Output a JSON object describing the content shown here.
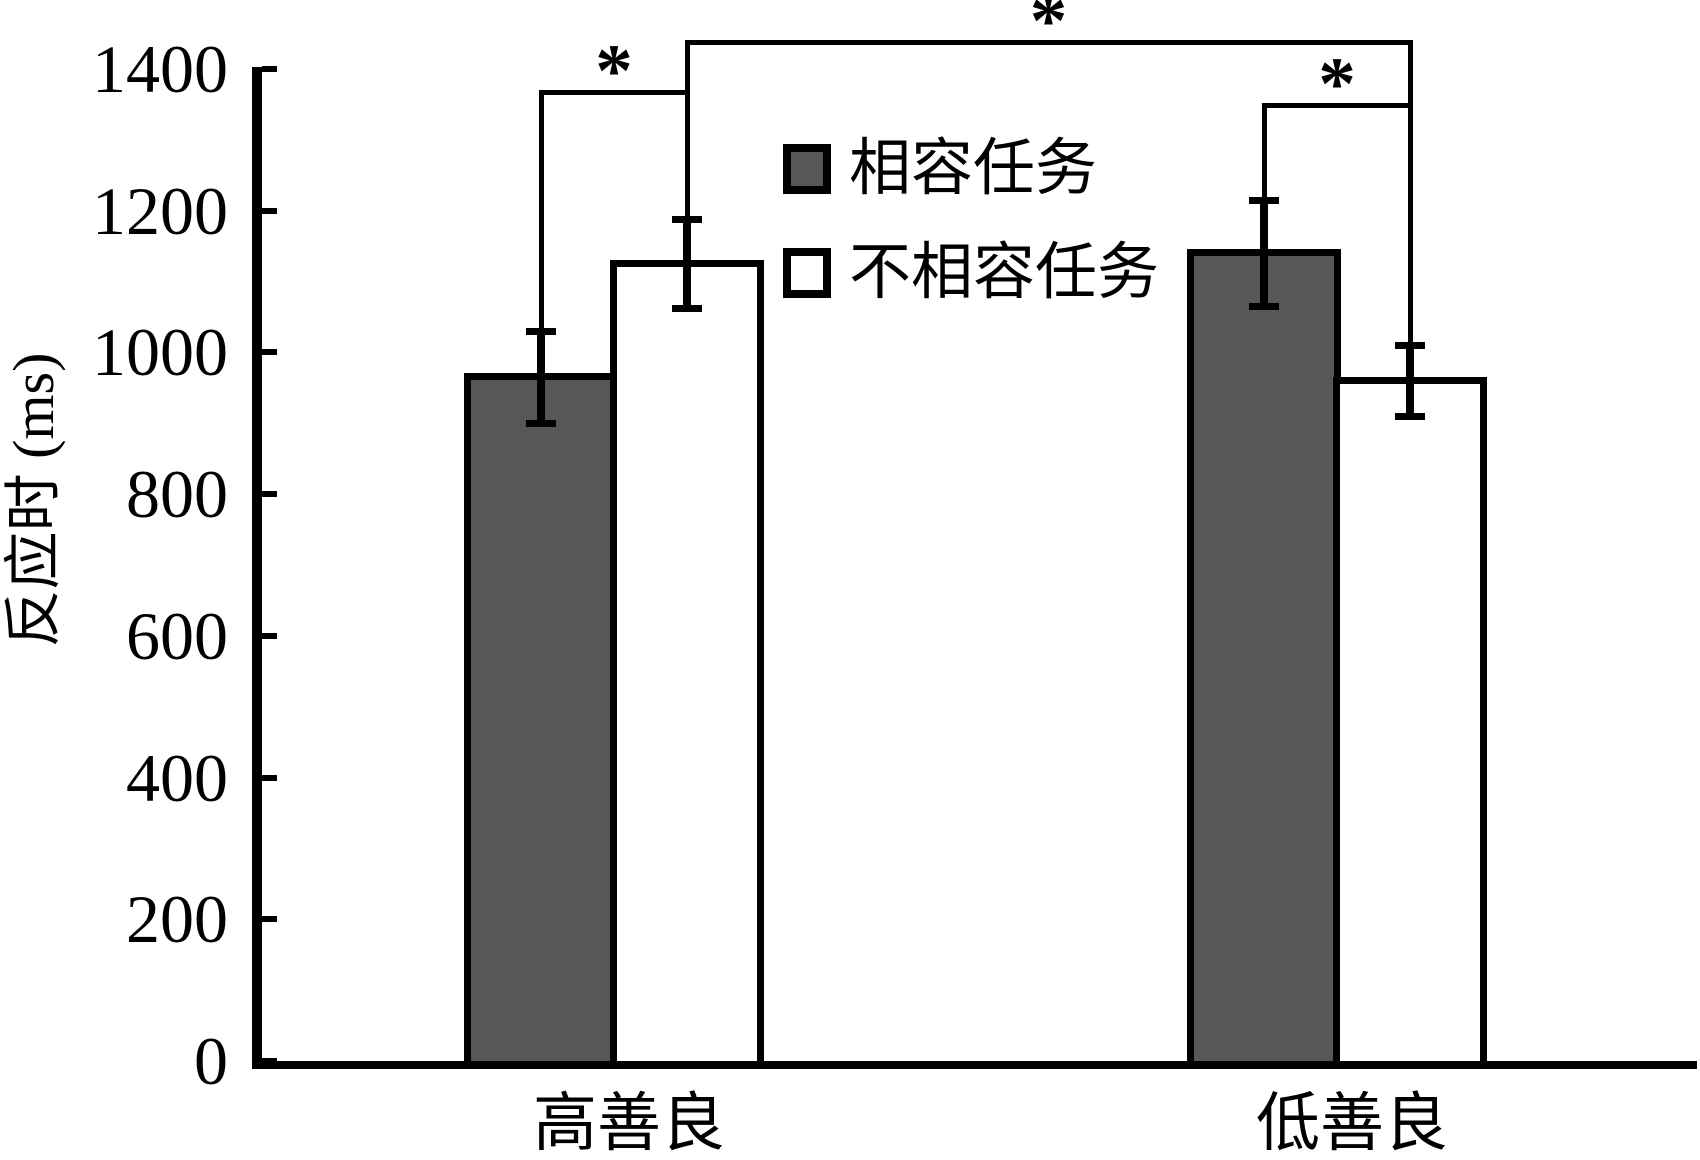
{
  "chart_data": {
    "type": "bar",
    "categories": [
      "高善良",
      "低善良"
    ],
    "series": [
      {
        "name": "相容任务",
        "fill": "#575757",
        "values": [
          965,
          1140
        ],
        "errors": [
          65,
          75
        ]
      },
      {
        "name": "不相容任务",
        "fill": "#ffffff",
        "values": [
          1125,
          960
        ],
        "errors": [
          63,
          50
        ]
      }
    ],
    "ylabel": "反应时 (ms)",
    "xlabel": "",
    "yticks": [
      0,
      200,
      400,
      600,
      800,
      1000,
      1200,
      1400
    ],
    "ylim": [
      0,
      1400
    ],
    "grid": false,
    "error_bars": true,
    "legend_position": "inside-top-center",
    "significance": [
      {
        "bars": [
          [
            0,
            0
          ],
          [
            0,
            1
          ]
        ],
        "label": "*"
      },
      {
        "bars": [
          [
            0,
            1
          ],
          [
            1,
            1
          ]
        ],
        "label": "*"
      },
      {
        "bars": [
          [
            1,
            0
          ],
          [
            1,
            1
          ]
        ],
        "label": "*"
      }
    ]
  },
  "colors": {
    "axis": "#000000",
    "bar_outline": "#000000",
    "compatible_fill": "#575757",
    "incompatible_fill": "#ffffff",
    "background": "#ffffff"
  }
}
